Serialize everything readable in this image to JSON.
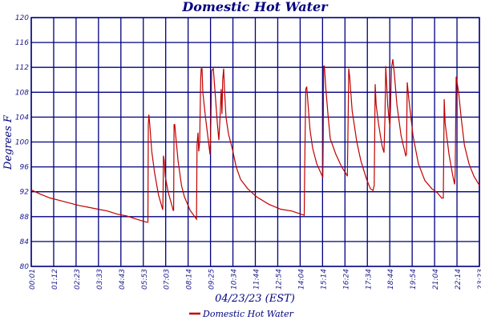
{
  "chart_data": {
    "type": "line",
    "title": "Domestic Hot Water",
    "xlabel": "04/23/23 (EST)",
    "ylabel": "Degrees F",
    "ylim": [
      80,
      120
    ],
    "xlim_hours": [
      0.0167,
      23.383
    ],
    "yticks": [
      "80",
      "84",
      "88",
      "92",
      "96",
      "100",
      "104",
      "108",
      "112",
      "116",
      "120"
    ],
    "xticks": [
      "00:01",
      "01:12",
      "02:23",
      "03:33",
      "04:43",
      "05:53",
      "07:03",
      "08:14",
      "09:25",
      "10:34",
      "11:44",
      "12:54",
      "14:04",
      "15:14",
      "16:24",
      "17:34",
      "18:44",
      "19:54",
      "21:04",
      "22:14",
      "23:23"
    ],
    "grid": true,
    "legend_position": "bottom-center",
    "colors": {
      "axis": "#00007f",
      "grid": "#00007f",
      "series": "#c00000"
    },
    "series": [
      {
        "name": "Domestic Hot Water",
        "x_unit": "hours",
        "points": [
          [
            0.02,
            92.3
          ],
          [
            0.5,
            91.6
          ],
          [
            1,
            91
          ],
          [
            1.5,
            90.6
          ],
          [
            2,
            90.2
          ],
          [
            2.5,
            89.8
          ],
          [
            3,
            89.5
          ],
          [
            3.5,
            89.2
          ],
          [
            4,
            88.9
          ],
          [
            4.5,
            88.4
          ],
          [
            5,
            88.1
          ],
          [
            5.5,
            87.6
          ],
          [
            6.04,
            87.1
          ],
          [
            6.1,
            87.1
          ],
          [
            6.12,
            102.8
          ],
          [
            6.15,
            104.4
          ],
          [
            6.2,
            102.7
          ],
          [
            6.3,
            98.5
          ],
          [
            6.45,
            95
          ],
          [
            6.65,
            91.5
          ],
          [
            6.87,
            89.1
          ],
          [
            6.89,
            91.5
          ],
          [
            6.91,
            97.8
          ],
          [
            6.95,
            97
          ],
          [
            7.0,
            94.5
          ],
          [
            7.15,
            92
          ],
          [
            7.42,
            89
          ],
          [
            7.44,
            89
          ],
          [
            7.46,
            102.8
          ],
          [
            7.5,
            102.8
          ],
          [
            7.55,
            101
          ],
          [
            7.67,
            97
          ],
          [
            7.85,
            93
          ],
          [
            8.0,
            91.2
          ],
          [
            8.3,
            89
          ],
          [
            8.63,
            87.6
          ],
          [
            8.66,
            99.5
          ],
          [
            8.71,
            101.5
          ],
          [
            8.75,
            98.5
          ],
          [
            8.8,
            100
          ],
          [
            8.85,
            110
          ],
          [
            8.88,
            111.8
          ],
          [
            8.92,
            111.8
          ],
          [
            8.96,
            108
          ],
          [
            9.1,
            104
          ],
          [
            9.34,
            98
          ],
          [
            9.38,
            103
          ],
          [
            9.42,
            111.5
          ],
          [
            9.51,
            111.8
          ],
          [
            9.6,
            108
          ],
          [
            9.72,
            103
          ],
          [
            9.8,
            100.3
          ],
          [
            9.86,
            104
          ],
          [
            9.92,
            108.5
          ],
          [
            9.96,
            104.5
          ],
          [
            10.0,
            110
          ],
          [
            10.05,
            111.8
          ],
          [
            10.1,
            108
          ],
          [
            10.17,
            104
          ],
          [
            10.3,
            101.3
          ],
          [
            10.51,
            98.8
          ],
          [
            10.7,
            96
          ],
          [
            10.93,
            94
          ],
          [
            11.3,
            92.5
          ],
          [
            11.76,
            91.2
          ],
          [
            12.4,
            90
          ],
          [
            13.02,
            89.2
          ],
          [
            13.6,
            88.9
          ],
          [
            14.19,
            88.3
          ],
          [
            14.25,
            88.2
          ],
          [
            14.27,
            95
          ],
          [
            14.33,
            108.5
          ],
          [
            14.38,
            108.9
          ],
          [
            14.45,
            106
          ],
          [
            14.55,
            102
          ],
          [
            14.69,
            99
          ],
          [
            14.9,
            96.5
          ],
          [
            15.19,
            94.5
          ],
          [
            15.22,
            94.3
          ],
          [
            15.24,
            101
          ],
          [
            15.26,
            112.2
          ],
          [
            15.3,
            112.2
          ],
          [
            15.38,
            108.5
          ],
          [
            15.5,
            104
          ],
          [
            15.61,
            100.5
          ],
          [
            15.9,
            98
          ],
          [
            16.2,
            96
          ],
          [
            16.45,
            94.8
          ],
          [
            16.5,
            94.5
          ],
          [
            16.55,
            106
          ],
          [
            16.57,
            111.8
          ],
          [
            16.62,
            110.5
          ],
          [
            16.75,
            105
          ],
          [
            16.99,
            100
          ],
          [
            17.2,
            97
          ],
          [
            17.5,
            94
          ],
          [
            17.7,
            92.5
          ],
          [
            17.83,
            92.2
          ],
          [
            17.9,
            93
          ],
          [
            17.95,
            109.3
          ],
          [
            18.0,
            106
          ],
          [
            18.12,
            103
          ],
          [
            18.3,
            99.5
          ],
          [
            18.41,
            98.3
          ],
          [
            18.46,
            104
          ],
          [
            18.5,
            112.2
          ],
          [
            18.6,
            106
          ],
          [
            18.66,
            104
          ],
          [
            18.72,
            102.4
          ],
          [
            18.75,
            106
          ],
          [
            18.8,
            112
          ],
          [
            18.87,
            113.3
          ],
          [
            18.95,
            111
          ],
          [
            19.08,
            106
          ],
          [
            19.3,
            101
          ],
          [
            19.54,
            97.8
          ],
          [
            19.58,
            98
          ],
          [
            19.62,
            109.6
          ],
          [
            19.7,
            107
          ],
          [
            19.92,
            101
          ],
          [
            20.2,
            96.5
          ],
          [
            20.54,
            93.8
          ],
          [
            20.9,
            92.5
          ],
          [
            21.2,
            91.8
          ],
          [
            21.42,
            91.0
          ],
          [
            21.5,
            91
          ],
          [
            21.55,
            106.9
          ],
          [
            21.6,
            103
          ],
          [
            21.8,
            98
          ],
          [
            22.0,
            94.5
          ],
          [
            22.09,
            93.2
          ],
          [
            22.12,
            95
          ],
          [
            22.17,
            110.5
          ],
          [
            22.22,
            109.5
          ],
          [
            22.3,
            108
          ],
          [
            22.43,
            104
          ],
          [
            22.6,
            99.5
          ],
          [
            22.84,
            96.5
          ],
          [
            23.1,
            94.5
          ],
          [
            23.39,
            93
          ]
        ]
      }
    ]
  }
}
